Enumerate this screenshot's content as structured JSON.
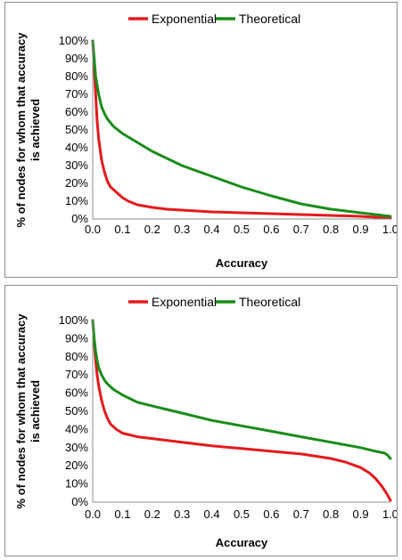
{
  "chart_data": [
    {
      "type": "line",
      "title": "",
      "xlabel": "Accuracy",
      "ylabel": "% of nodes for whom that accuracy is achieved",
      "ylabel_lines": [
        "% of nodes for whom that accuracy",
        "is achieved"
      ],
      "xlim": [
        0,
        1
      ],
      "ylim": [
        0,
        100
      ],
      "x_ticks": [
        "0.0",
        "0.1",
        "0.2",
        "0.3",
        "0.4",
        "0.5",
        "0.6",
        "0.7",
        "0.8",
        "0.9",
        "1.0"
      ],
      "y_ticks": [
        "0%",
        "10%",
        "20%",
        "30%",
        "40%",
        "50%",
        "60%",
        "70%",
        "80%",
        "90%",
        "100%"
      ],
      "grid": false,
      "legend_position": "top",
      "series": [
        {
          "name": "Exponential",
          "color": "#e31a1c",
          "x": [
            0,
            0.005,
            0.01,
            0.015,
            0.02,
            0.03,
            0.04,
            0.05,
            0.06,
            0.08,
            0.1,
            0.12,
            0.15,
            0.2,
            0.25,
            0.3,
            0.4,
            0.5,
            0.6,
            0.7,
            0.8,
            0.9,
            1.0
          ],
          "y": [
            100,
            85,
            70,
            55,
            45,
            33,
            26,
            21,
            18,
            15,
            12,
            10,
            8,
            6.5,
            5.5,
            5,
            4,
            3.5,
            3,
            2.5,
            2,
            1.5,
            0.5
          ]
        },
        {
          "name": "Theoretical",
          "color": "#1a8c1a",
          "x": [
            0,
            0.005,
            0.01,
            0.015,
            0.02,
            0.03,
            0.04,
            0.05,
            0.07,
            0.1,
            0.15,
            0.2,
            0.25,
            0.3,
            0.35,
            0.4,
            0.45,
            0.5,
            0.6,
            0.7,
            0.8,
            0.9,
            1.0
          ],
          "y": [
            100,
            90,
            80,
            75,
            70,
            63,
            59,
            56,
            52,
            48,
            43,
            38,
            34,
            30,
            27,
            24,
            21,
            18,
            13,
            8.5,
            5.5,
            3.5,
            1.5
          ]
        }
      ]
    },
    {
      "type": "line",
      "title": "",
      "xlabel": "Accuracy",
      "ylabel": "% of nodes for whom that accuracy is achieved",
      "ylabel_lines": [
        "% of nodes for whom that accuracy",
        "is achieved"
      ],
      "xlim": [
        0,
        1
      ],
      "ylim": [
        0,
        100
      ],
      "x_ticks": [
        "0.0",
        "0.1",
        "0.2",
        "0.3",
        "0.4",
        "0.5",
        "0.6",
        "0.7",
        "0.8",
        "0.9",
        "1.0"
      ],
      "y_ticks": [
        "0%",
        "10%",
        "20%",
        "30%",
        "40%",
        "50%",
        "60%",
        "70%",
        "80%",
        "90%",
        "100%"
      ],
      "grid": false,
      "legend_position": "top",
      "series": [
        {
          "name": "Exponential",
          "color": "#e31a1c",
          "x": [
            0,
            0.005,
            0.01,
            0.015,
            0.02,
            0.03,
            0.04,
            0.05,
            0.06,
            0.08,
            0.1,
            0.15,
            0.2,
            0.3,
            0.4,
            0.5,
            0.6,
            0.7,
            0.8,
            0.85,
            0.9,
            0.93,
            0.95,
            0.97,
            0.99,
            1.0
          ],
          "y": [
            100,
            88,
            78,
            70,
            64,
            56,
            50,
            46,
            43,
            40,
            38,
            36,
            35,
            33,
            31,
            29.5,
            28,
            26.5,
            24,
            22,
            19,
            16,
            13,
            9,
            4,
            1
          ]
        },
        {
          "name": "Theoretical",
          "color": "#1a8c1a",
          "x": [
            0,
            0.005,
            0.01,
            0.015,
            0.02,
            0.03,
            0.04,
            0.05,
            0.07,
            0.1,
            0.15,
            0.2,
            0.25,
            0.3,
            0.4,
            0.5,
            0.6,
            0.7,
            0.8,
            0.9,
            0.95,
            0.98,
            0.99,
            0.995,
            1.0
          ],
          "y": [
            100,
            90,
            83,
            78,
            74,
            70,
            67,
            65,
            62,
            59,
            55,
            53,
            51,
            49,
            45,
            42,
            39,
            36,
            33,
            30,
            28,
            27,
            26,
            25,
            24
          ]
        }
      ]
    }
  ]
}
